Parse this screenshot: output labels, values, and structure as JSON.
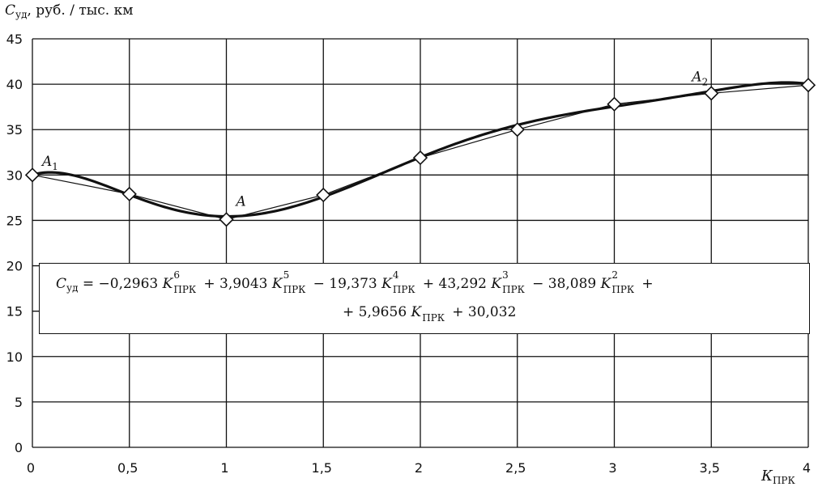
{
  "chart_data": {
    "type": "line",
    "ylabel_var": "С",
    "ylabel_sub": "уд",
    "ylabel_unit": ", руб. / тыс. км",
    "xlabel_var": "К",
    "xlabel_sub": "ПРК",
    "x_ticks": [
      "0",
      "0,5",
      "1",
      "1,5",
      "2",
      "2,5",
      "3",
      "3,5",
      "4"
    ],
    "y_ticks": [
      "0",
      "5",
      "10",
      "15",
      "20",
      "25",
      "30",
      "35",
      "40",
      "45"
    ],
    "xlim": [
      0,
      4
    ],
    "ylim": [
      0,
      45
    ],
    "grid": true,
    "series": [
      {
        "style": "line-with-diamond-markers",
        "x": [
          0,
          0.5,
          1,
          1.5,
          2,
          2.5,
          3,
          3.5,
          4
        ],
        "y": [
          30,
          27.9,
          25.1,
          27.8,
          31.9,
          35,
          37.8,
          39,
          39.9
        ]
      },
      {
        "style": "polynomial-trend",
        "coefficients_desc": [
          -0.2963,
          3.9043,
          -19.373,
          43.292,
          -38.089,
          5.9656,
          30.032
        ]
      }
    ],
    "annotations": [
      {
        "var": "A",
        "sub": "1",
        "x": 0.05,
        "y": 31.0
      },
      {
        "var": "A",
        "sub": "",
        "x": 1.05,
        "y": 26.6
      },
      {
        "var": "A",
        "sub": "2",
        "x": 3.4,
        "y": 40.3
      }
    ],
    "equation": {
      "line1": [
        {
          "t": "С"
        },
        {
          "sub": "уд"
        },
        {
          "t": " = −0,2963 "
        },
        {
          "v": "K",
          "sup": "6",
          "sub": "ПРК"
        },
        {
          "t": "+ 3,9043 "
        },
        {
          "v": "K",
          "sup": "5",
          "sub": "ПРК"
        },
        {
          "t": "− 19,373 "
        },
        {
          "v": "K",
          "sup": "4",
          "sub": "ПРК"
        },
        {
          "t": "+ 43,292 "
        },
        {
          "v": "K",
          "sup": "3",
          "sub": "ПРК"
        },
        {
          "t": "− 38,089 "
        },
        {
          "v": "K",
          "sup": "2",
          "sub": "ПРК"
        },
        {
          "t": "+"
        }
      ],
      "line2": [
        {
          "t": "+ 5,9656 "
        },
        {
          "v": "K",
          "sub": "ПРК"
        },
        {
          "t": "+ 30,032"
        }
      ]
    }
  }
}
